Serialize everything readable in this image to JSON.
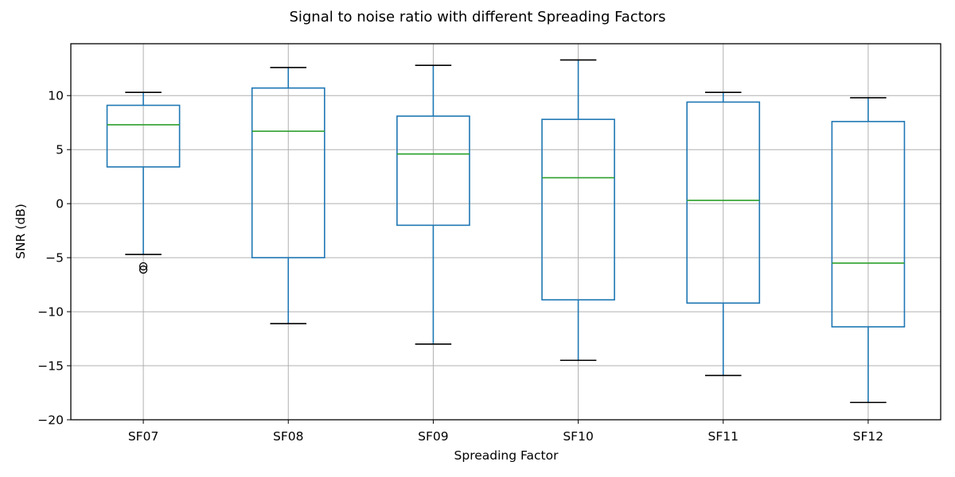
{
  "chart_data": {
    "type": "boxplot",
    "title": "Signal to noise ratio with different Spreading Factors",
    "xlabel": "Spreading Factor",
    "ylabel": "SNR (dB)",
    "ylim": [
      -20,
      14.8
    ],
    "yticks": [
      -20,
      -15,
      -10,
      -5,
      0,
      5,
      10
    ],
    "grid": true,
    "categories": [
      "SF07",
      "SF08",
      "SF09",
      "SF10",
      "SF11",
      "SF12"
    ],
    "boxes": [
      {
        "name": "SF07",
        "whisker_low": -4.7,
        "q1": 3.4,
        "median": 7.3,
        "q3": 9.1,
        "whisker_high": 10.3,
        "outliers": [
          -5.8,
          -6.1
        ]
      },
      {
        "name": "SF08",
        "whisker_low": -11.1,
        "q1": -5.0,
        "median": 6.7,
        "q3": 10.7,
        "whisker_high": 12.6,
        "outliers": []
      },
      {
        "name": "SF09",
        "whisker_low": -13.0,
        "q1": -2.0,
        "median": 4.6,
        "q3": 8.1,
        "whisker_high": 12.8,
        "outliers": []
      },
      {
        "name": "SF10",
        "whisker_low": -14.5,
        "q1": -8.9,
        "median": 2.4,
        "q3": 7.8,
        "whisker_high": 13.3,
        "outliers": []
      },
      {
        "name": "SF11",
        "whisker_low": -15.9,
        "q1": -9.2,
        "median": 0.3,
        "q3": 9.4,
        "whisker_high": 10.3,
        "outliers": []
      },
      {
        "name": "SF12",
        "whisker_low": -18.4,
        "q1": -11.4,
        "median": -5.5,
        "q3": 7.6,
        "whisker_high": 9.8,
        "outliers": []
      }
    ],
    "colors": {
      "box": "#1f77b4",
      "median": "#2ca02c",
      "cap": "#000000",
      "grid": "#b0b0b0",
      "outlier": "#000000"
    }
  }
}
